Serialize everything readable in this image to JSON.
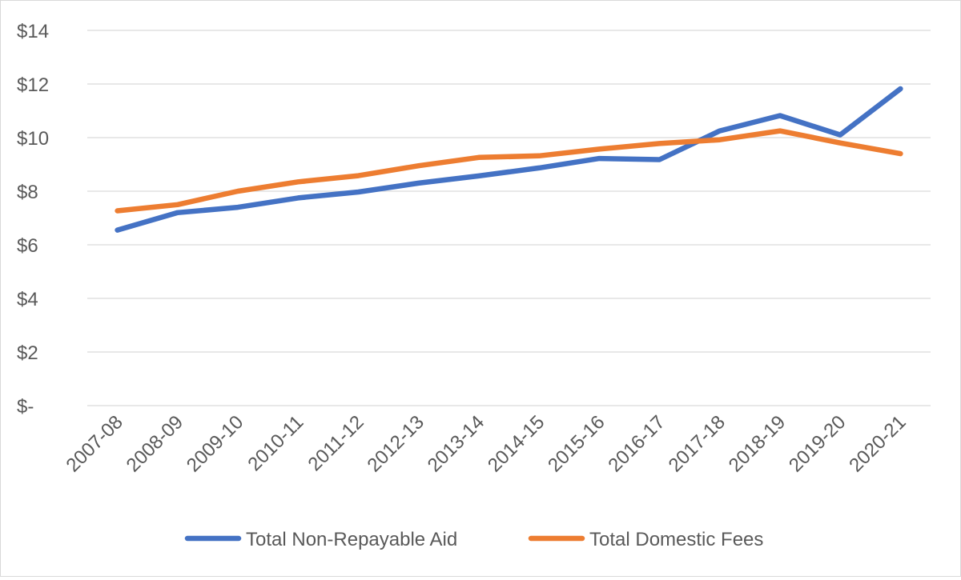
{
  "chart_data": {
    "type": "line",
    "categories": [
      "2007-08",
      "2008-09",
      "2009-10",
      "2010-11",
      "2011-12",
      "2012-13",
      "2013-14",
      "2014-15",
      "2015-16",
      "2016-17",
      "2017-18",
      "2018-19",
      "2019-20",
      "2020-21"
    ],
    "series": [
      {
        "name": "Total Non-Repayable Aid",
        "color": "#4472c4",
        "values": [
          6.55,
          7.2,
          7.4,
          7.75,
          7.97,
          8.3,
          8.57,
          8.87,
          9.22,
          9.18,
          10.25,
          10.82,
          10.1,
          11.82
        ]
      },
      {
        "name": "Total Domestic Fees",
        "color": "#ed7d31",
        "values": [
          7.27,
          7.5,
          8.0,
          8.35,
          8.58,
          8.95,
          9.26,
          9.32,
          9.57,
          9.78,
          9.92,
          10.25,
          9.8,
          9.4
        ]
      }
    ],
    "ylim": [
      0,
      14
    ],
    "yticks": [
      0,
      2,
      4,
      6,
      8,
      10,
      12,
      14
    ],
    "ytick_labels": [
      "$-",
      "$2",
      "$4",
      "$6",
      "$8",
      "$10",
      "$12",
      "$14"
    ],
    "grid": true,
    "legend_position": "bottom",
    "title": "",
    "xlabel": "",
    "ylabel": ""
  }
}
